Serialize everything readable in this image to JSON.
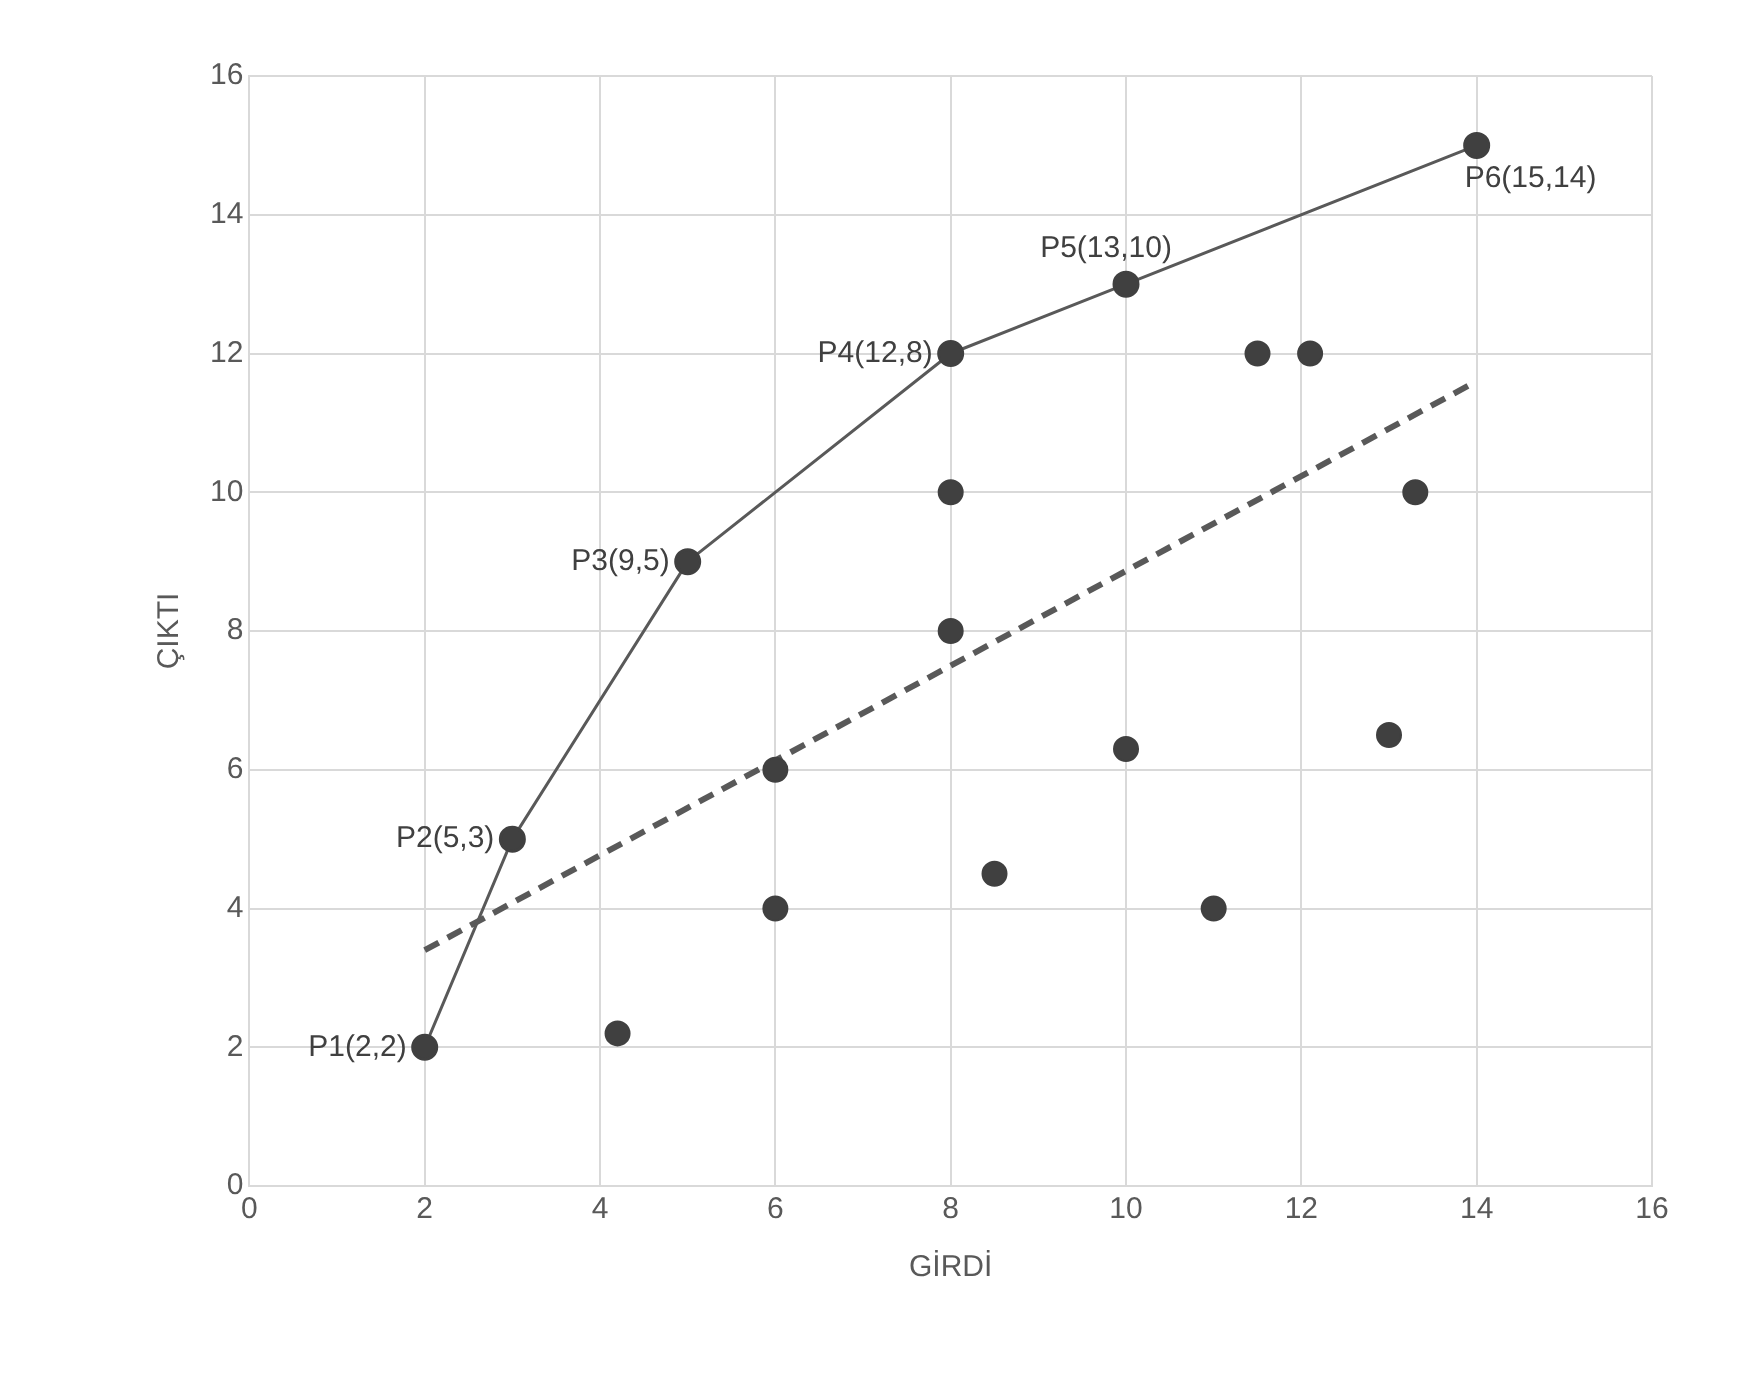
{
  "chart_data": {
    "type": "scatter",
    "xlabel": "GİRDİ",
    "ylabel": "ÇIKTI",
    "xlim": [
      0,
      16
    ],
    "xticks": [
      0,
      2,
      4,
      6,
      8,
      10,
      12,
      14,
      16
    ],
    "ylim": [
      0,
      16
    ],
    "yticks": [
      0,
      2,
      4,
      6,
      8,
      10,
      12,
      14,
      16
    ],
    "grid": true,
    "legend": false,
    "marker": "circle",
    "series": [
      {
        "type": "line",
        "color": "#595959",
        "x": [
          2,
          3,
          5,
          8,
          10,
          14
        ],
        "values": [
          2,
          5,
          9,
          12,
          13,
          15
        ]
      },
      {
        "type": "scatter",
        "color": "#404040",
        "x": [
          4.2,
          6,
          6,
          8,
          8,
          8.5,
          10,
          11,
          11.5,
          12.1,
          13,
          13.3
        ],
        "values": [
          2.2,
          6,
          4,
          10,
          8,
          4.5,
          6.3,
          4,
          12,
          12,
          6.5,
          10
        ]
      },
      {
        "type": "line",
        "color": "#595959",
        "line_style": "dashed",
        "marker": "none",
        "x": [
          2,
          14
        ],
        "values": [
          3.4,
          11.6
        ]
      }
    ],
    "annotations": [
      {
        "text": "P1(2,2)",
        "x": 2,
        "y": 2
      },
      {
        "text": "P2(5,3)",
        "x": 3,
        "y": 5
      },
      {
        "text": "P3(9,5)",
        "x": 5,
        "y": 9
      },
      {
        "text": "P4(12,8)",
        "x": 8,
        "y": 12
      },
      {
        "text": "P5(13,10)",
        "x": 10,
        "y": 13
      },
      {
        "text": "P6(15,14)",
        "x": 14,
        "y": 15
      }
    ]
  }
}
